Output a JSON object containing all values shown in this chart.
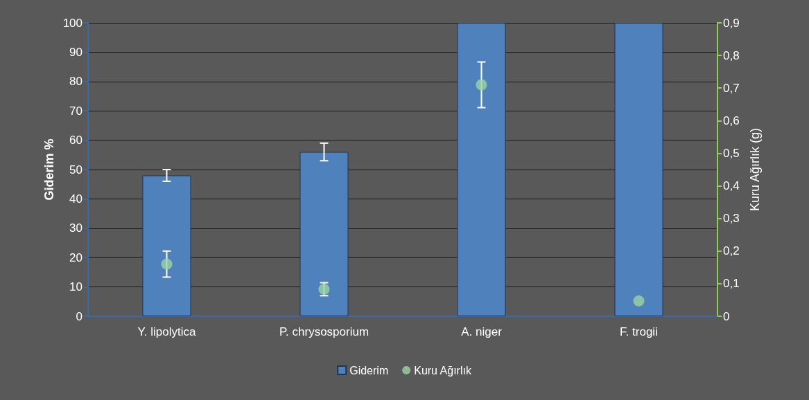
{
  "chart_data": {
    "type": "bar",
    "categories": [
      "Y. lipolytica",
      "P. chrysosporium",
      "A. niger",
      "F. trogii"
    ],
    "series": [
      {
        "name": "Giderim",
        "color": "#4f81bd",
        "values": [
          48,
          56,
          100,
          100
        ],
        "errors": [
          2,
          3,
          null,
          null
        ]
      },
      {
        "name": "Kuru Ağırlık",
        "type": "scatter",
        "axis": "y2",
        "color": "#9bd3a0",
        "values": [
          0.16,
          0.083,
          0.71,
          0.047
        ],
        "errors": [
          0.04,
          0.02,
          0.07,
          null
        ]
      }
    ],
    "ylabel": "Giderim %",
    "y2label": "Kuru Ağırlık (g)",
    "ylim": [
      0,
      100
    ],
    "yticks": [
      0,
      10,
      20,
      30,
      40,
      50,
      60,
      70,
      80,
      90,
      100
    ],
    "y2lim": [
      0,
      0.9
    ],
    "y2ticks": [
      {
        "value": 0,
        "label": "0"
      },
      {
        "value": 0.1,
        "label": "0,1"
      },
      {
        "value": 0.2,
        "label": "0,2"
      },
      {
        "value": 0.3,
        "label": "0,3"
      },
      {
        "value": 0.4,
        "label": "0,4"
      },
      {
        "value": 0.5,
        "label": "0,5"
      },
      {
        "value": 0.6,
        "label": "0,6"
      },
      {
        "value": 0.7,
        "label": "0,7"
      },
      {
        "value": 0.8,
        "label": "0,8"
      },
      {
        "value": 0.9,
        "label": "0,9"
      }
    ],
    "grid": "y",
    "legend": "bottom",
    "marker": "circle"
  }
}
